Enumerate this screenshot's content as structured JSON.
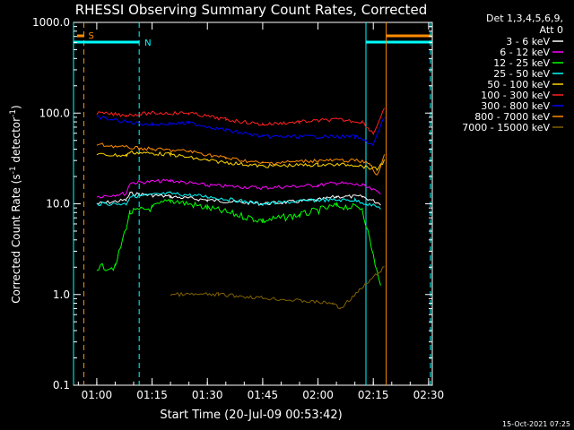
{
  "chart_data": {
    "type": "line",
    "title": "RHESSI Observing Summary Count Rates, Corrected",
    "xlabel": "Start Time (20-Jul-09 00:53:42)",
    "ylabel_main": "Corrected Count Rate (s",
    "ylabel_sup": "-1",
    "ylabel_tail": " detector",
    "ylabel_end": ")",
    "y_scale": "log",
    "ylim": [
      0.1,
      1000
    ],
    "xlim": [
      "00:53:42",
      "02:31:00"
    ],
    "x_ticks": [
      "01:00",
      "01:15",
      "01:30",
      "01:45",
      "02:00",
      "02:15",
      "02:30"
    ],
    "y_ticks": [
      "1000.0",
      "100.0",
      "10.0",
      "1.0",
      "0.1"
    ],
    "legend_header": [
      "Det 1,3,4,5,6,9,",
      "Att 0"
    ],
    "legend_placement": "right",
    "series": [
      {
        "name": "3 - 6 keV",
        "color": "#ffffff",
        "level": "≈10-13",
        "points": [
          [
            "01:00",
            10
          ],
          [
            "01:08",
            11
          ],
          [
            "01:09",
            13
          ],
          [
            "01:20",
            12
          ],
          [
            "01:30",
            11
          ],
          [
            "01:45",
            10
          ],
          [
            "02:00",
            11
          ],
          [
            "02:05",
            12
          ],
          [
            "02:12",
            12
          ],
          [
            "02:17",
            10
          ]
        ]
      },
      {
        "name": "6 - 12 keV",
        "color": "#ff00ff",
        "points": [
          [
            "01:00",
            12
          ],
          [
            "01:08",
            13
          ],
          [
            "01:09",
            17
          ],
          [
            "01:20",
            18
          ],
          [
            "01:30",
            16
          ],
          [
            "01:45",
            15
          ],
          [
            "02:00",
            16
          ],
          [
            "02:05",
            17
          ],
          [
            "02:12",
            16
          ],
          [
            "02:17",
            13
          ]
        ]
      },
      {
        "name": "12 - 25 keV",
        "color": "#00ff00",
        "points": [
          [
            "01:00",
            2
          ],
          [
            "01:05",
            2
          ],
          [
            "01:09",
            8
          ],
          [
            "01:15",
            9
          ],
          [
            "01:20",
            11
          ],
          [
            "01:30",
            9
          ],
          [
            "01:45",
            6.5
          ],
          [
            "01:55",
            7.5
          ],
          [
            "02:05",
            9.5
          ],
          [
            "02:12",
            9
          ],
          [
            "02:17",
            1.2
          ]
        ]
      },
      {
        "name": "25 - 50 keV",
        "color": "#00ffff",
        "points": [
          [
            "01:00",
            10
          ],
          [
            "01:08",
            10
          ],
          [
            "01:09",
            12
          ],
          [
            "01:20",
            13
          ],
          [
            "01:30",
            12
          ],
          [
            "01:45",
            10
          ],
          [
            "02:00",
            11
          ],
          [
            "02:10",
            11
          ],
          [
            "02:17",
            9
          ]
        ]
      },
      {
        "name": "50 - 100 keV",
        "color": "#ffd700",
        "points": [
          [
            "01:00",
            35
          ],
          [
            "01:08",
            34
          ],
          [
            "01:09",
            37
          ],
          [
            "01:20",
            35
          ],
          [
            "01:30",
            30
          ],
          [
            "01:45",
            26
          ],
          [
            "02:00",
            27
          ],
          [
            "02:10",
            27
          ],
          [
            "02:16",
            24
          ],
          [
            "02:18",
            30
          ]
        ]
      },
      {
        "name": "100 - 300 keV",
        "color": "#ff2020",
        "points": [
          [
            "01:00",
            100
          ],
          [
            "01:08",
            95
          ],
          [
            "01:15",
            100
          ],
          [
            "01:25",
            100
          ],
          [
            "01:35",
            85
          ],
          [
            "01:45",
            75
          ],
          [
            "01:55",
            80
          ],
          [
            "02:05",
            85
          ],
          [
            "02:12",
            80
          ],
          [
            "02:15",
            60
          ],
          [
            "02:18",
            110
          ]
        ]
      },
      {
        "name": "300 - 800 keV",
        "color": "#0000ff",
        "points": [
          [
            "01:00",
            90
          ],
          [
            "01:08",
            80
          ],
          [
            "01:15",
            75
          ],
          [
            "01:25",
            78
          ],
          [
            "01:35",
            65
          ],
          [
            "01:45",
            55
          ],
          [
            "02:00",
            55
          ],
          [
            "02:10",
            55
          ],
          [
            "02:15",
            45
          ],
          [
            "02:18",
            90
          ]
        ]
      },
      {
        "name": "800 - 7000 keV",
        "color": "#ff8c00",
        "points": [
          [
            "01:00",
            45
          ],
          [
            "01:08",
            42
          ],
          [
            "01:15",
            40
          ],
          [
            "01:25",
            38
          ],
          [
            "01:35",
            32
          ],
          [
            "01:45",
            28
          ],
          [
            "02:00",
            30
          ],
          [
            "02:10",
            30
          ],
          [
            "02:14",
            28
          ],
          [
            "02:16",
            20
          ],
          [
            "02:18",
            35
          ]
        ]
      },
      {
        "name": "7000 - 15000 keV",
        "color": "#806000",
        "points": [
          [
            "01:20",
            1
          ],
          [
            "01:33",
            1
          ],
          [
            "02:04",
            0.8
          ],
          [
            "02:06",
            0.7
          ],
          [
            "02:18",
            2
          ]
        ]
      }
    ],
    "annotations": [
      {
        "text": "S",
        "color": "#ff8c00",
        "x": "00:56:30"
      },
      {
        "text": "N",
        "color": "#00ffff",
        "x": "01:11:30"
      }
    ],
    "footer_stamp": "15-Oct-2021 07:25"
  }
}
